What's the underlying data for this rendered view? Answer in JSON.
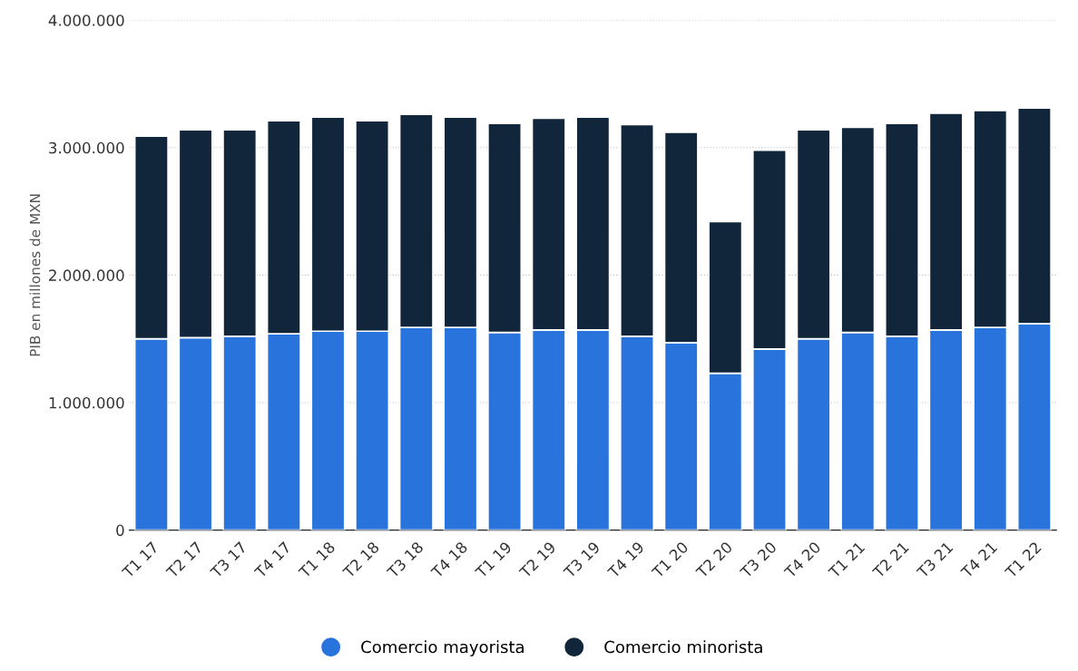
{
  "chart_data": {
    "type": "bar",
    "stacked": true,
    "ylabel": "PIB en millones de MXN",
    "categories": [
      "T1 17",
      "T2 17",
      "T3 17",
      "T4 17",
      "T1 18",
      "T2 18",
      "T3 18",
      "T4 18",
      "T1 19",
      "T2 19",
      "T3 19",
      "T4 19",
      "T1 20",
      "T2 20",
      "T3 20",
      "T4 20",
      "T1 21",
      "T2 21",
      "T3 21",
      "T4 21",
      "T1 22"
    ],
    "series": [
      {
        "name": "Comercio mayorista",
        "color": "#2874dc",
        "values": [
          1500000,
          1510000,
          1520000,
          1540000,
          1560000,
          1560000,
          1590000,
          1590000,
          1550000,
          1570000,
          1570000,
          1520000,
          1470000,
          1230000,
          1420000,
          1500000,
          1550000,
          1520000,
          1570000,
          1590000,
          1620000
        ]
      },
      {
        "name": "Comercio minorista",
        "color": "#12263b",
        "values": [
          1590000,
          1630000,
          1620000,
          1670000,
          1680000,
          1650000,
          1670000,
          1650000,
          1640000,
          1660000,
          1670000,
          1660000,
          1650000,
          1190000,
          1560000,
          1640000,
          1610000,
          1670000,
          1700000,
          1700000,
          1690000
        ]
      }
    ],
    "ylim": [
      0,
      4000000
    ],
    "yticks": [
      0,
      {
        "value": 1000000,
        "label": "1.000.000"
      },
      {
        "value": 2000000,
        "label": "2.000.000"
      },
      {
        "value": 3000000,
        "label": "3.000.000"
      },
      {
        "value": 4000000,
        "label": "4.000.000"
      }
    ],
    "grid": "y",
    "legend": "bottom"
  }
}
